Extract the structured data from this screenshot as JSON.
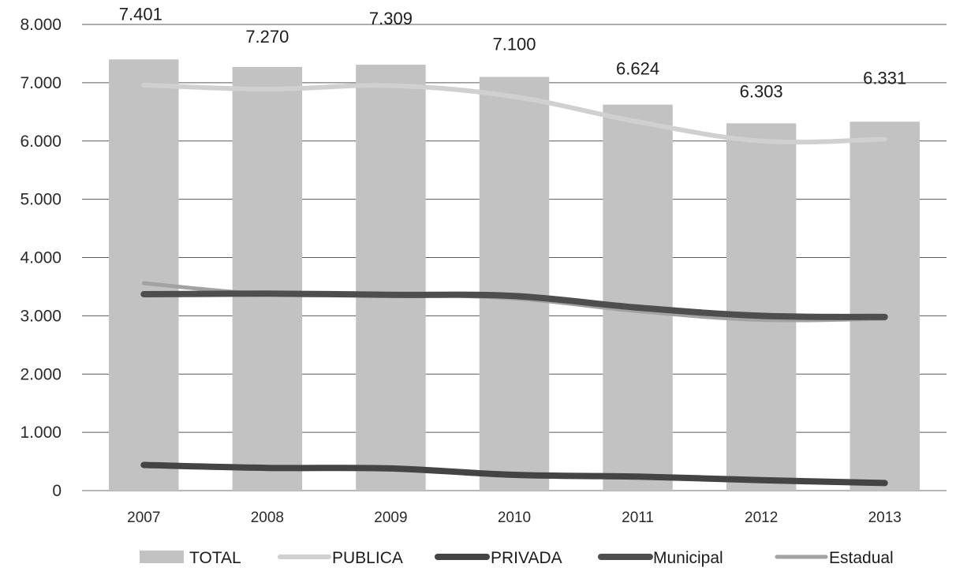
{
  "chart_data": {
    "type": "bar",
    "categories": [
      "2007",
      "2008",
      "2009",
      "2010",
      "2011",
      "2012",
      "2013"
    ],
    "ylim": [
      0,
      8000
    ],
    "yticks": [
      0,
      1000,
      2000,
      3000,
      4000,
      5000,
      6000,
      7000,
      8000
    ],
    "ytick_labels": [
      "0",
      "1.000",
      "2.000",
      "3.000",
      "4.000",
      "5.000",
      "6.000",
      "7.000",
      "8.000"
    ],
    "grid": true,
    "legend_position": "bottom",
    "series": [
      {
        "name": "TOTAL",
        "kind": "bar",
        "color": "#c2c2c2",
        "values": [
          7401,
          7270,
          7309,
          7100,
          6624,
          6303,
          6331
        ],
        "data_labels": [
          "7.401",
          "7.270",
          "7.309",
          "7.100",
          "6.624",
          "6.303",
          "6.331"
        ]
      },
      {
        "name": "PUBLICA",
        "kind": "line",
        "color": "#d0d0d0",
        "values": [
          6960,
          6890,
          6950,
          6760,
          6330,
          6000,
          6030
        ]
      },
      {
        "name": "PRIVADA",
        "kind": "line",
        "color": "#444444",
        "values": [
          440,
          390,
          380,
          270,
          240,
          180,
          130
        ]
      },
      {
        "name": "Municipal",
        "kind": "line",
        "color": "#4e4e4e",
        "values": [
          3370,
          3380,
          3360,
          3340,
          3140,
          3000,
          2980
        ]
      },
      {
        "name": "Estadual",
        "kind": "line",
        "color": "#a2a2a2",
        "values": [
          3560,
          3370,
          3360,
          3300,
          3080,
          2930,
          2950
        ]
      }
    ]
  }
}
